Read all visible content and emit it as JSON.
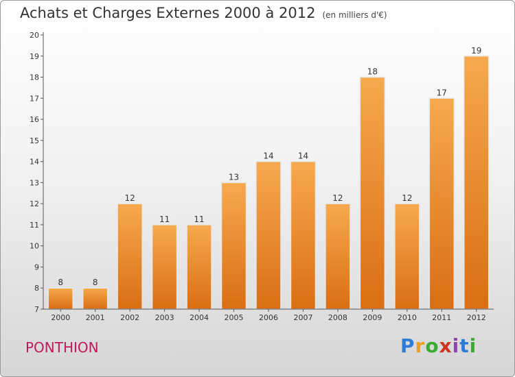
{
  "title": "Achats et Charges Externes 2000 à 2012",
  "unit": "(en milliers d'€)",
  "commune": "PONTHION",
  "logo": {
    "text": "Proxiti"
  },
  "colors": {
    "bar_top": "#f7a94e",
    "bar_bottom": "#d96e14",
    "bar_edge": "#e7e7e7",
    "commune": "#c0185a"
  },
  "chart_data": {
    "type": "bar",
    "title": "Achats et Charges Externes 2000 à 2012",
    "subtitle": "(en milliers d'€)",
    "xlabel": "",
    "ylabel": "",
    "ylim": [
      7,
      20
    ],
    "yticks": [
      7,
      8,
      9,
      10,
      11,
      12,
      13,
      14,
      15,
      16,
      17,
      18,
      19,
      20
    ],
    "grid": false,
    "categories": [
      "2000",
      "2001",
      "2002",
      "2003",
      "2004",
      "2005",
      "2006",
      "2007",
      "2008",
      "2009",
      "2010",
      "2011",
      "2012"
    ],
    "values": [
      8,
      8,
      12,
      11,
      11,
      13,
      14,
      14,
      12,
      18,
      12,
      17,
      19
    ]
  }
}
